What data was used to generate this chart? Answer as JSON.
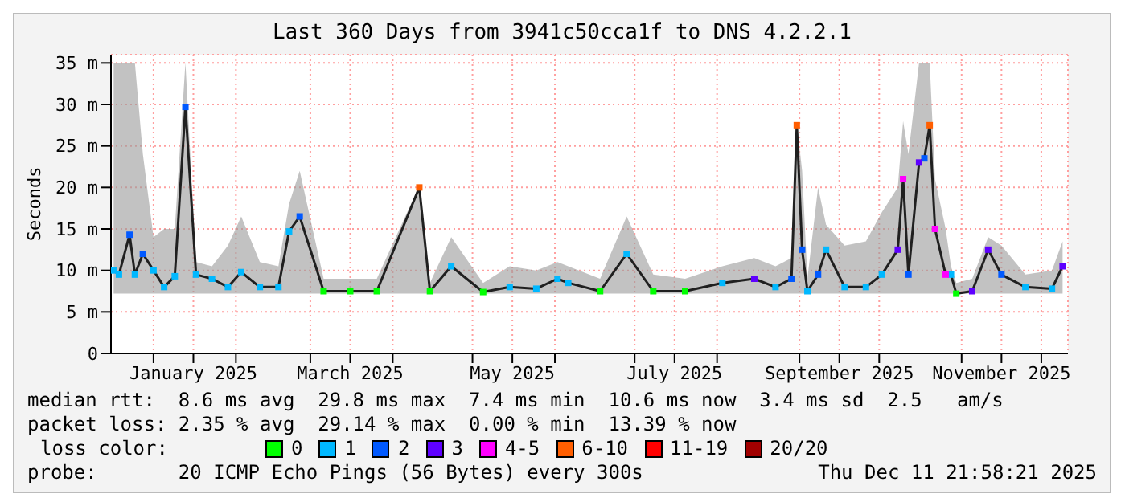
{
  "chart_data": {
    "type": "line",
    "title": "Last 360 Days from 3941c50cca1f to DNS 4.2.2.1",
    "ylabel": "Seconds",
    "xlim": [
      "2024-12-16",
      "2025-12-11"
    ],
    "xticks": [
      {
        "value": "2025-01-01",
        "label": null
      },
      {
        "value": "2025-01-16",
        "label": "January 2025"
      },
      {
        "value": "2025-02-01",
        "label": null
      },
      {
        "value": "2025-03-01",
        "label": null
      },
      {
        "value": "2025-03-16",
        "label": "March 2025"
      },
      {
        "value": "2025-04-01",
        "label": null
      },
      {
        "value": "2025-05-01",
        "label": null
      },
      {
        "value": "2025-05-16",
        "label": "May 2025"
      },
      {
        "value": "2025-06-01",
        "label": null
      },
      {
        "value": "2025-07-01",
        "label": null
      },
      {
        "value": "2025-07-16",
        "label": "July 2025"
      },
      {
        "value": "2025-08-01",
        "label": null
      },
      {
        "value": "2025-09-01",
        "label": null
      },
      {
        "value": "2025-09-16",
        "label": "September 2025"
      },
      {
        "value": "2025-10-01",
        "label": null
      },
      {
        "value": "2025-11-01",
        "label": null
      },
      {
        "value": "2025-11-16",
        "label": "November 2025"
      },
      {
        "value": "2025-12-01",
        "label": null
      }
    ],
    "ylim": [
      0,
      36
    ],
    "yticks": [
      0,
      {
        "value": 5,
        "label": "5 m"
      },
      {
        "value": 10,
        "label": "10 m"
      },
      {
        "value": 15,
        "label": "15 m"
      },
      {
        "value": 20,
        "label": "20 m"
      },
      {
        "value": 25,
        "label": "25 m"
      },
      {
        "value": 30,
        "label": "30 m"
      },
      {
        "value": 35,
        "label": "35 m"
      }
    ],
    "grid": true,
    "legend": "bottom",
    "legend_title": "loss color:",
    "line_style": "solid",
    "series": [
      {
        "color": "#202020",
        "marker": "none",
        "x": [
          "2024-12-17",
          "2024-12-19",
          "2024-12-23",
          "2024-12-25",
          "2024-12-28",
          "2025-01-01",
          "2025-01-05",
          "2025-01-09",
          "2025-01-13",
          "2025-01-17",
          "2025-01-23",
          "2025-01-29",
          "2025-02-03",
          "2025-02-10",
          "2025-02-17",
          "2025-02-21",
          "2025-02-25",
          "2025-03-06",
          "2025-03-16",
          "2025-03-26",
          "2025-04-11",
          "2025-04-15",
          "2025-04-23",
          "2025-05-05",
          "2025-05-15",
          "2025-05-25",
          "2025-06-02",
          "2025-06-06",
          "2025-06-18",
          "2025-06-28",
          "2025-07-08",
          "2025-07-20",
          "2025-08-03",
          "2025-08-15",
          "2025-08-23",
          "2025-08-29",
          "2025-08-31",
          "2025-09-02",
          "2025-09-04",
          "2025-09-08",
          "2025-09-11",
          "2025-09-18",
          "2025-09-26",
          "2025-10-02",
          "2025-10-08",
          "2025-10-10",
          "2025-10-12",
          "2025-10-16",
          "2025-10-18",
          "2025-10-20",
          "2025-10-22",
          "2025-10-26",
          "2025-10-28",
          "2025-10-30",
          "2025-11-05",
          "2025-11-11",
          "2025-11-16",
          "2025-11-25",
          "2025-12-05",
          "2025-12-09"
        ],
        "values": [
          10,
          9.5,
          14.3,
          9.5,
          12,
          10,
          8,
          9.3,
          29.7,
          9.5,
          9,
          8,
          9.8,
          8,
          8,
          14.7,
          16.5,
          7.5,
          7.5,
          7.5,
          20,
          7.5,
          10.5,
          7.4,
          8,
          7.8,
          9,
          8.5,
          7.5,
          12,
          7.5,
          7.5,
          8.5,
          9,
          8,
          9,
          27.5,
          12.5,
          7.5,
          9.5,
          12.5,
          8,
          8,
          9.5,
          12.5,
          21,
          9.5,
          23,
          23.5,
          27.5,
          15,
          9.5,
          9.5,
          7.2,
          7.5,
          12.5,
          9.5,
          8,
          7.8,
          10.5
        ],
        "lower": [
          7.2,
          7.2,
          7.2,
          7.2,
          7.2,
          7.2,
          7.2,
          7.2,
          7.2,
          7.2,
          7.2,
          7.2,
          7.2,
          7.2,
          7.2,
          7.2,
          7.2,
          7.2,
          7.2,
          7.2,
          7.2,
          7.2,
          7.2,
          7.2,
          7.2,
          7.2,
          7.2,
          7.2,
          7.2,
          7.2,
          7.2,
          7.2,
          7.2,
          7.2,
          7.2,
          7.2,
          7.2,
          7.2,
          7.2,
          7.2,
          7.2,
          7.2,
          7.2,
          7.2,
          7.2,
          7.2,
          7.2,
          7.2,
          7.2,
          7.2,
          7.2,
          7.2,
          7.2,
          7.2,
          7.2,
          7.2,
          7.2,
          7.2,
          7.2,
          7.2
        ],
        "upper": [
          35,
          35,
          35,
          35,
          24,
          14,
          15,
          15,
          35,
          11,
          10.5,
          13,
          16.5,
          11,
          10.5,
          18,
          22,
          9,
          9,
          9,
          20.2,
          8.5,
          14,
          8.5,
          10.5,
          10,
          11,
          10.5,
          9,
          16.5,
          9.5,
          9,
          10.5,
          11.5,
          10.5,
          11.5,
          27.7,
          22,
          9,
          20,
          15.5,
          13,
          13.5,
          17,
          20,
          28,
          24,
          35,
          35,
          35,
          21,
          15,
          10.5,
          8.5,
          9,
          14,
          13,
          9.5,
          10,
          13.5
        ]
      },
      {
        "type": "scatter",
        "name": "0",
        "color": "#00ff00",
        "marker": "square",
        "x": [
          "2025-03-06",
          "2025-03-16",
          "2025-03-26",
          "2025-04-15",
          "2025-05-05",
          "2025-06-18",
          "2025-07-08",
          "2025-07-20",
          "2025-10-30"
        ],
        "values": [
          7.5,
          7.5,
          7.5,
          7.5,
          7.4,
          7.5,
          7.5,
          7.5,
          7.2
        ]
      },
      {
        "type": "scatter",
        "name": "1",
        "color": "#00b8ff",
        "marker": "square",
        "x": [
          "2024-12-17",
          "2024-12-19",
          "2024-12-25",
          "2025-01-01",
          "2025-01-05",
          "2025-01-09",
          "2025-01-17",
          "2025-01-23",
          "2025-01-29",
          "2025-02-03",
          "2025-02-10",
          "2025-02-17",
          "2025-02-21",
          "2025-04-23",
          "2025-05-15",
          "2025-05-25",
          "2025-06-02",
          "2025-06-06",
          "2025-06-28",
          "2025-08-03",
          "2025-08-23",
          "2025-09-04",
          "2025-09-11",
          "2025-09-18",
          "2025-09-26",
          "2025-10-02",
          "2025-10-28",
          "2025-11-25",
          "2025-12-05"
        ],
        "values": [
          10,
          9.5,
          9.5,
          10,
          8,
          9.3,
          9.5,
          9,
          8,
          9.8,
          8,
          8,
          14.7,
          10.5,
          8,
          7.8,
          9,
          8.5,
          12,
          8.5,
          8,
          7.5,
          12.5,
          8,
          8,
          9.5,
          9.5,
          8,
          7.8
        ]
      },
      {
        "type": "scatter",
        "name": "2",
        "color": "#0059ff",
        "marker": "square",
        "x": [
          "2024-12-23",
          "2024-12-28",
          "2025-01-13",
          "2025-02-25",
          "2025-08-29",
          "2025-09-02",
          "2025-09-08",
          "2025-10-12",
          "2025-10-18",
          "2025-11-16"
        ],
        "values": [
          14.3,
          12,
          29.7,
          16.5,
          9,
          12.5,
          9.5,
          9.5,
          23.5,
          9.5
        ]
      },
      {
        "type": "scatter",
        "name": "3",
        "color": "#5e00ff",
        "marker": "square",
        "x": [
          "2025-08-15",
          "2025-10-08",
          "2025-10-16",
          "2025-11-05",
          "2025-11-11",
          "2025-12-09"
        ],
        "values": [
          9,
          12.5,
          23,
          7.5,
          12.5,
          10.5
        ]
      },
      {
        "type": "scatter",
        "name": "4-5",
        "color": "#ff00ff",
        "marker": "square",
        "x": [
          "2025-10-10",
          "2025-10-22",
          "2025-10-26"
        ],
        "values": [
          21,
          15,
          9.5
        ]
      },
      {
        "type": "scatter",
        "name": "6-10",
        "color": "#ff5e00",
        "marker": "square",
        "x": [
          "2025-04-11",
          "2025-08-31",
          "2025-10-20"
        ],
        "values": [
          20,
          27.5,
          27.5
        ]
      },
      {
        "type": "scatter",
        "name": "11-19",
        "color": "#ff0000",
        "marker": "square"
      },
      {
        "type": "scatter",
        "name": "20/20",
        "color": "#a10000",
        "marker": "square"
      }
    ],
    "annotations": [
      "median rtt:  8.6 ms avg  29.8 ms max  7.4 ms min  10.6 ms now  3.4 ms sd  2.5   am/s",
      "packet loss: 2.35 % avg  29.14 % max  0.00 % min  13.39 % now",
      "probe:       20 ICMP Echo Pings (56 Bytes) every 300s",
      "Thu Dec 11 21:58:21 2025"
    ]
  }
}
